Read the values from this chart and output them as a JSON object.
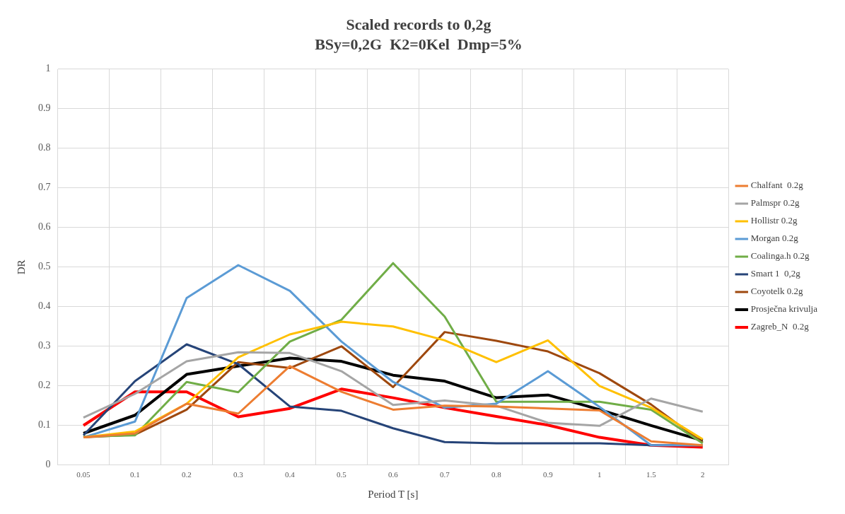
{
  "chart_data": {
    "type": "line",
    "title": "Scaled records to 0,2g",
    "subtitle": "BSy=0,2G  K2=0Kel  Dmp=5%",
    "xlabel": "Period T [s]",
    "ylabel": "DR",
    "categories": [
      "0.05",
      "0.1",
      "0.2",
      "0.3",
      "0.4",
      "0.5",
      "0.6",
      "0.7",
      "0.8",
      "0.9",
      "1",
      "1.5",
      "2"
    ],
    "ylim": [
      0,
      1
    ],
    "yticks": [
      0,
      0.1,
      0.2,
      0.3,
      0.4,
      0.5,
      0.6,
      0.7,
      0.8,
      0.9,
      1
    ],
    "grid": true,
    "legend": "right",
    "marker": "none",
    "line_style": "solid",
    "series": [
      {
        "name": "Chalfant  0.2g",
        "color": "#ed7d31",
        "values": [
          0.07,
          0.08,
          0.155,
          0.13,
          0.25,
          0.185,
          0.14,
          0.15,
          0.148,
          0.143,
          0.138,
          0.06,
          0.05
        ]
      },
      {
        "name": "Palmspr 0.2g",
        "color": "#a5a5a5",
        "values": [
          0.12,
          0.18,
          0.262,
          0.285,
          0.283,
          0.237,
          0.152,
          0.163,
          0.15,
          0.107,
          0.099,
          0.168,
          0.135
        ]
      },
      {
        "name": "Hollistr 0.2g",
        "color": "#ffc000",
        "values": [
          0.07,
          0.085,
          0.155,
          0.272,
          0.33,
          0.362,
          0.35,
          0.315,
          0.26,
          0.315,
          0.2,
          0.145,
          0.065
        ]
      },
      {
        "name": "Morgan 0.2g",
        "color": "#5b9bd5",
        "values": [
          0.07,
          0.11,
          0.422,
          0.505,
          0.44,
          0.312,
          0.21,
          0.145,
          0.155,
          0.237,
          0.147,
          0.05,
          0.05
        ]
      },
      {
        "name": "Coalinga.h 0.2g",
        "color": "#70ad47",
        "values": [
          0.072,
          0.075,
          0.21,
          0.184,
          0.312,
          0.367,
          0.51,
          0.375,
          0.16,
          0.16,
          0.16,
          0.14,
          0.055
        ]
      },
      {
        "name": "Smart 1  0,2g",
        "color": "#264478",
        "values": [
          0.075,
          0.212,
          0.305,
          0.255,
          0.148,
          0.137,
          0.093,
          0.058,
          0.055,
          0.055,
          0.055,
          0.05,
          0.05
        ]
      },
      {
        "name": "Coyotelk 0.2g",
        "color": "#9e480e",
        "values": [
          0.07,
          0.077,
          0.14,
          0.26,
          0.245,
          0.3,
          0.197,
          0.336,
          0.314,
          0.287,
          0.232,
          0.153,
          0.057
        ]
      },
      {
        "name": "Prosječna krivulja",
        "color": "#000000",
        "values": [
          0.08,
          0.126,
          0.229,
          0.25,
          0.27,
          0.262,
          0.227,
          0.212,
          0.17,
          0.177,
          0.14,
          0.1,
          0.062
        ]
      },
      {
        "name": "Zagreb_N  0.2g",
        "color": "#ff0000",
        "values": [
          0.1,
          0.185,
          0.185,
          0.122,
          0.143,
          0.192,
          0.17,
          0.145,
          0.123,
          0.101,
          0.07,
          0.05,
          0.045
        ]
      }
    ]
  }
}
